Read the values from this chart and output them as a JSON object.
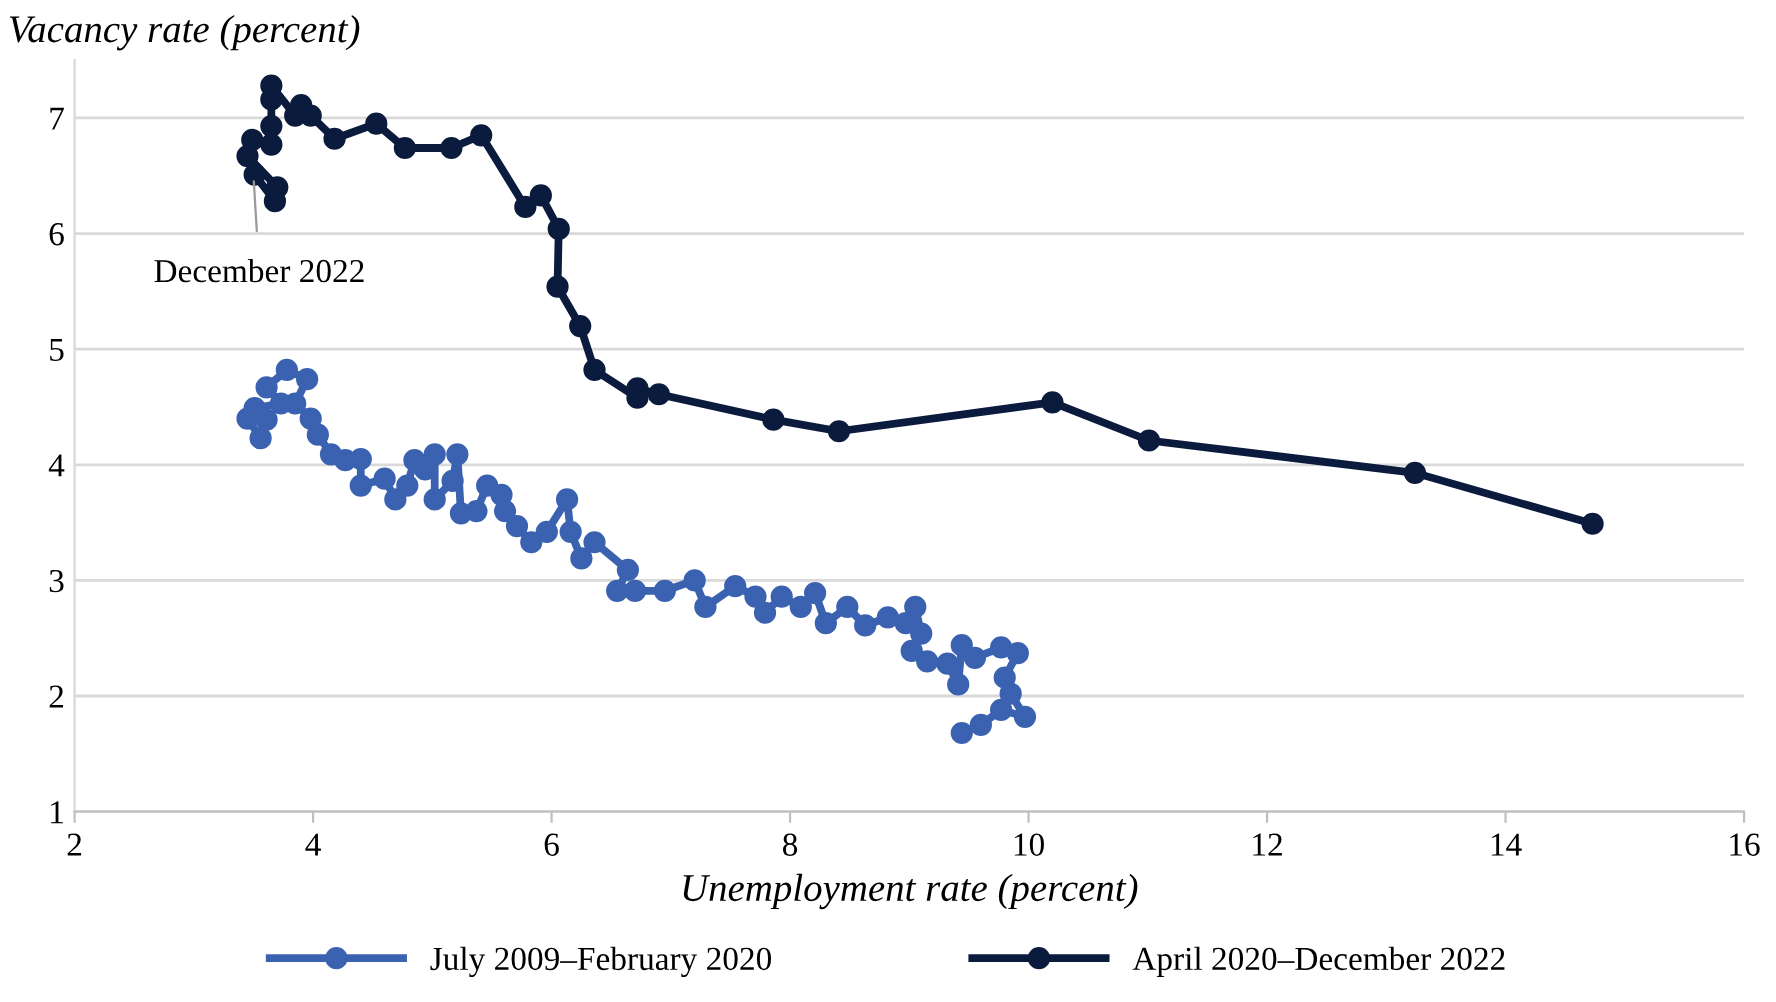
{
  "chart_data": {
    "type": "line",
    "xlabel": "Unemployment rate (percent)",
    "ylabel": "Vacancy rate (percent)",
    "xlim": [
      2,
      16
    ],
    "xticks": [
      2,
      4,
      6,
      8,
      10,
      12,
      14,
      16
    ],
    "ylim": [
      1,
      7.5
    ],
    "yticks": [
      1,
      2,
      3,
      4,
      5,
      6,
      7
    ],
    "grid": "y",
    "legend": "bottom",
    "marker": "circle",
    "line_style": "solid",
    "annotations": [
      {
        "text": "December 2022",
        "x": 3.5,
        "y": 6.5
      }
    ],
    "series": [
      {
        "name": "July 2009–February 2020",
        "color": "#3a62b0",
        "x": [
          9.44,
          9.6,
          9.77,
          9.97,
          9.85,
          9.8,
          9.91,
          9.77,
          9.55,
          9.44,
          9.41,
          9.32,
          9.15,
          9.02,
          9.1,
          9.05,
          8.97,
          8.82,
          8.63,
          8.48,
          8.3,
          8.21,
          8.09,
          7.93,
          7.79,
          7.71,
          7.54,
          7.29,
          7.2,
          6.95,
          6.7,
          6.55,
          6.64,
          6.36,
          6.25,
          6.16,
          6.13,
          5.96,
          5.83,
          5.71,
          5.61,
          5.58,
          5.46,
          5.37,
          5.24,
          5.21,
          5.17,
          5.02,
          5.02,
          4.94,
          4.85,
          4.79,
          4.69,
          4.6,
          4.4,
          4.4,
          4.27,
          4.15,
          4.04,
          3.98,
          3.85,
          3.95,
          3.78,
          3.61,
          3.73,
          3.51,
          3.45,
          3.56,
          3.61
        ],
        "values": [
          1.68,
          1.75,
          1.88,
          1.82,
          2.02,
          2.16,
          2.37,
          2.42,
          2.33,
          2.44,
          2.1,
          2.28,
          2.3,
          2.39,
          2.54,
          2.77,
          2.63,
          2.68,
          2.61,
          2.77,
          2.63,
          2.89,
          2.77,
          2.86,
          2.72,
          2.86,
          2.95,
          2.77,
          3.0,
          2.91,
          2.91,
          2.91,
          3.09,
          3.33,
          3.19,
          3.42,
          3.7,
          3.42,
          3.33,
          3.47,
          3.6,
          3.74,
          3.82,
          3.6,
          3.58,
          4.09,
          3.86,
          3.7,
          4.09,
          3.96,
          4.04,
          3.82,
          3.7,
          3.88,
          3.82,
          4.05,
          4.04,
          4.09,
          4.26,
          4.4,
          4.53,
          4.74,
          4.82,
          4.67,
          4.53,
          4.49,
          4.4,
          4.23,
          4.39
        ]
      },
      {
        "name": "April 2020–December 2022",
        "color": "#0b1b3d",
        "x": [
          14.73,
          13.24,
          11.01,
          10.2,
          8.41,
          7.86,
          6.9,
          6.72,
          6.72,
          6.36,
          6.24,
          6.05,
          6.06,
          5.91,
          5.78,
          5.41,
          5.16,
          4.77,
          4.53,
          4.18,
          3.98,
          3.9,
          3.85,
          3.65,
          3.65,
          3.65,
          3.65,
          3.49,
          3.45,
          3.7,
          3.68,
          3.51
        ],
        "values": [
          3.49,
          3.93,
          4.21,
          4.54,
          4.29,
          4.39,
          4.61,
          4.66,
          4.58,
          4.82,
          5.2,
          5.54,
          6.04,
          6.33,
          6.23,
          6.85,
          6.74,
          6.74,
          6.95,
          6.82,
          7.02,
          7.11,
          7.02,
          7.28,
          7.16,
          6.93,
          6.77,
          6.81,
          6.67,
          6.4,
          6.28,
          6.51
        ]
      }
    ]
  }
}
